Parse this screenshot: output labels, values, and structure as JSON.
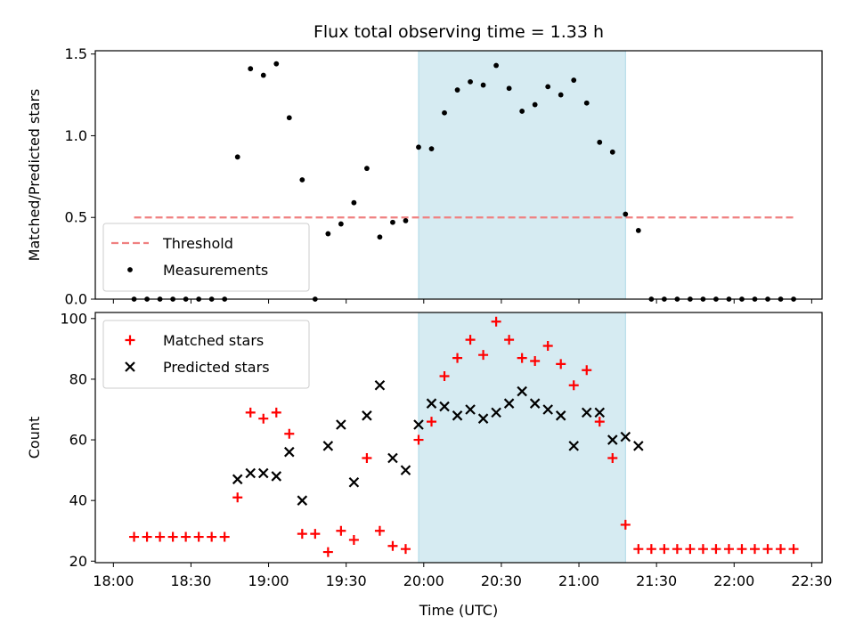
{
  "chart_data": {
    "title": "Flux total observing time = 1.33 h",
    "xlabel": "Time (UTC)",
    "x_ticks": [
      "18:00",
      "18:30",
      "19:00",
      "19:30",
      "20:00",
      "20:30",
      "21:00",
      "21:30",
      "22:00",
      "22:30"
    ],
    "xlim": [
      "17:53",
      "22:34"
    ],
    "shaded_interval": {
      "start": "19:58",
      "end": "21:18",
      "color": "#add8e6"
    },
    "panels": [
      {
        "type": "scatter",
        "ylabel": "Matched/Predicted stars",
        "ylim": [
          0,
          1.52
        ],
        "y_ticks": [
          "0.0",
          "0.5",
          "1.0",
          "1.5"
        ],
        "legend_position": "lower-left",
        "series": [
          {
            "name": "Threshold",
            "kind": "dashed-line",
            "color": "#f08080",
            "x": [
              "18:08",
              "22:24"
            ],
            "y": [
              0.5,
              0.5
            ]
          },
          {
            "name": "Measurements",
            "kind": "dot",
            "color": "#000000",
            "x": [
              "18:08",
              "18:13",
              "18:18",
              "18:23",
              "18:28",
              "18:33",
              "18:38",
              "18:43",
              "18:48",
              "18:53",
              "18:58",
              "19:03",
              "19:08",
              "19:13",
              "19:18",
              "19:23",
              "19:28",
              "19:33",
              "19:38",
              "19:43",
              "19:48",
              "19:53",
              "19:58",
              "20:03",
              "20:08",
              "20:13",
              "20:18",
              "20:23",
              "20:28",
              "20:33",
              "20:38",
              "20:43",
              "20:48",
              "20:53",
              "20:58",
              "21:03",
              "21:08",
              "21:13",
              "21:18",
              "21:23",
              "21:28",
              "21:33",
              "21:38",
              "21:43",
              "21:48",
              "21:53",
              "21:58",
              "22:03",
              "22:08",
              "22:13",
              "22:18",
              "22:23"
            ],
            "y": [
              0,
              0,
              0,
              0,
              0,
              0,
              0,
              0,
              0.87,
              1.41,
              1.37,
              1.44,
              1.11,
              0.73,
              0,
              0.4,
              0.46,
              0.59,
              0.8,
              0.38,
              0.47,
              0.48,
              0.93,
              0.92,
              1.14,
              1.28,
              1.33,
              1.31,
              1.43,
              1.29,
              1.15,
              1.19,
              1.3,
              1.25,
              1.34,
              1.2,
              0.96,
              0.9,
              0.52,
              0.42,
              0,
              0,
              0,
              0,
              0,
              0,
              0,
              0,
              0,
              0,
              0,
              0
            ]
          }
        ]
      },
      {
        "type": "scatter",
        "ylabel": "Count",
        "ylim": [
          19.5,
          102
        ],
        "y_ticks": [
          "20",
          "40",
          "60",
          "80",
          "100"
        ],
        "legend_position": "top-left",
        "series": [
          {
            "name": "Matched stars",
            "kind": "plus",
            "color": "#ff0000",
            "x": [
              "18:08",
              "18:13",
              "18:18",
              "18:23",
              "18:28",
              "18:33",
              "18:38",
              "18:43",
              "18:48",
              "18:53",
              "18:58",
              "19:03",
              "19:08",
              "19:13",
              "19:18",
              "19:23",
              "19:28",
              "19:33",
              "19:38",
              "19:43",
              "19:48",
              "19:53",
              "19:58",
              "20:03",
              "20:08",
              "20:13",
              "20:18",
              "20:23",
              "20:28",
              "20:33",
              "20:38",
              "20:43",
              "20:48",
              "20:53",
              "20:58",
              "21:03",
              "21:08",
              "21:13",
              "21:18",
              "21:23",
              "21:28",
              "21:33",
              "21:38",
              "21:43",
              "21:48",
              "21:53",
              "21:58",
              "22:03",
              "22:08",
              "22:13",
              "22:18",
              "22:23"
            ],
            "y": [
              28,
              28,
              28,
              28,
              28,
              28,
              28,
              28,
              41,
              69,
              67,
              69,
              62,
              29,
              29,
              23,
              30,
              27,
              54,
              30,
              25,
              24,
              60,
              66,
              81,
              87,
              93,
              88,
              99,
              93,
              87,
              86,
              91,
              85,
              78,
              83,
              66,
              54,
              32,
              24,
              24,
              24,
              24,
              24,
              24,
              24,
              24,
              24,
              24,
              24,
              24,
              24
            ]
          },
          {
            "name": "Predicted stars",
            "kind": "x",
            "color": "#000000",
            "x": [
              "18:48",
              "18:53",
              "18:58",
              "19:03",
              "19:08",
              "19:13",
              "19:23",
              "19:28",
              "19:33",
              "19:38",
              "19:43",
              "19:48",
              "19:53",
              "19:58",
              "20:03",
              "20:08",
              "20:13",
              "20:18",
              "20:23",
              "20:28",
              "20:33",
              "20:38",
              "20:43",
              "20:48",
              "20:53",
              "20:58",
              "21:03",
              "21:08",
              "21:13",
              "21:18",
              "21:23"
            ],
            "y": [
              47,
              49,
              49,
              48,
              56,
              40,
              58,
              65,
              46,
              68,
              78,
              54,
              50,
              65,
              72,
              71,
              68,
              70,
              67,
              69,
              72,
              76,
              72,
              70,
              68,
              58,
              69,
              69,
              60,
              61,
              58
            ]
          }
        ]
      }
    ]
  }
}
